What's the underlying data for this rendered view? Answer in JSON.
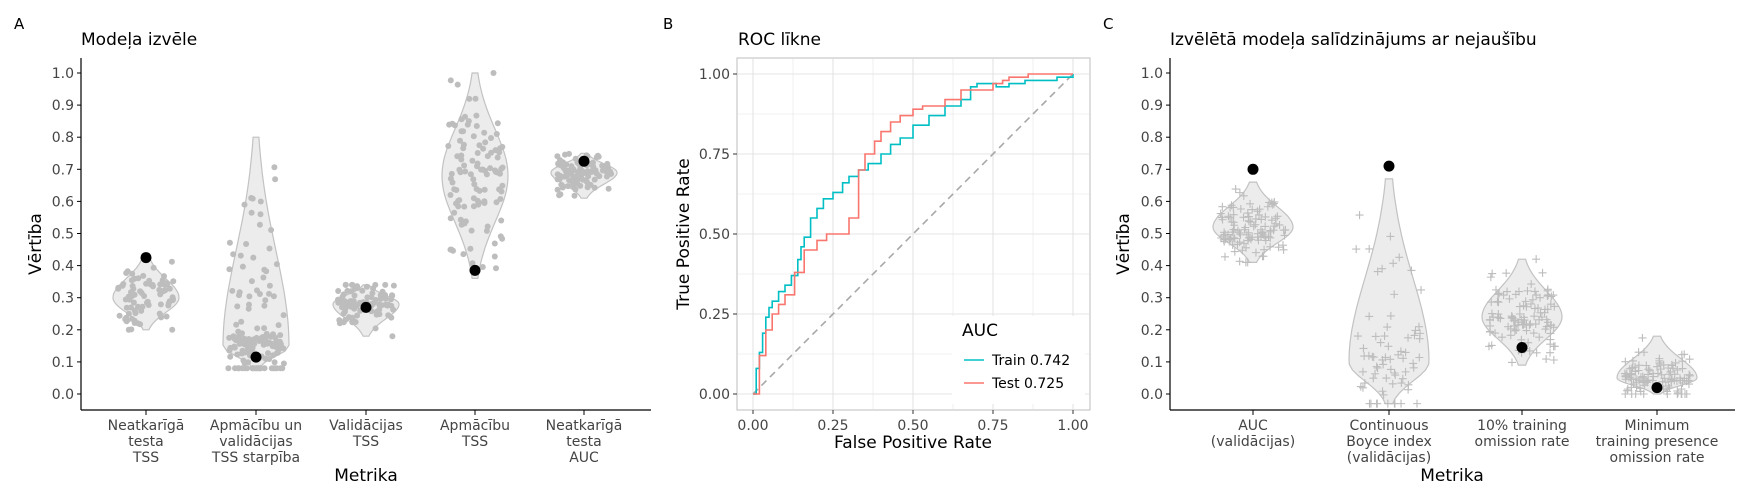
{
  "panel_labels": [
    "A",
    "B",
    "C"
  ],
  "colors": {
    "violin_fill": "#ececec",
    "violin_stroke": "#c2c2c2",
    "points": "#bdbdbd",
    "selected": "#000000",
    "train": "#00bfc4",
    "test": "#f8766d",
    "diagonal": "#a8a8a8",
    "grid": "#e4e4e4"
  },
  "chart_data": [
    {
      "id": "A",
      "type": "violin",
      "title": "Modeļa izvēle",
      "xlabel": "Metrika",
      "ylabel": "Vērtība",
      "ylim": [
        0,
        1
      ],
      "yticks": [
        "0.0",
        "0.1",
        "0.2",
        "0.3",
        "0.4",
        "0.5",
        "0.6",
        "0.7",
        "0.8",
        "0.9",
        "1.0"
      ],
      "point_shape": "circle",
      "categories": [
        {
          "label": [
            "Neatkarīgā",
            "testa",
            "TSS"
          ],
          "selected": 0.425,
          "min": 0.2,
          "max": 0.43,
          "center": 0.3,
          "n": 80
        },
        {
          "label": [
            "Apmācību un",
            "validācijas",
            "TSS starpība"
          ],
          "selected": 0.115,
          "min": 0.08,
          "max": 0.8,
          "center": 0.15,
          "n": 150
        },
        {
          "label": [
            "Validācijas",
            "TSS"
          ],
          "selected": 0.27,
          "min": 0.18,
          "max": 0.34,
          "center": 0.28,
          "n": 100
        },
        {
          "label": [
            "Apmācību",
            "TSS"
          ],
          "selected": 0.385,
          "min": 0.36,
          "max": 1.0,
          "center": 0.68,
          "n": 110
        },
        {
          "label": [
            "Neatkarīgā",
            "testa",
            "AUC"
          ],
          "selected": 0.725,
          "min": 0.61,
          "max": 0.75,
          "center": 0.69,
          "n": 100
        }
      ]
    },
    {
      "id": "B",
      "type": "line",
      "title": "ROC līkne",
      "xlabel": "False Positive Rate",
      "ylabel": "True Positive Rate",
      "xlim": [
        0,
        1
      ],
      "ylim": [
        0,
        1
      ],
      "xticks": [
        "0.00",
        "0.25",
        "0.50",
        "0.75",
        "1.00"
      ],
      "yticks": [
        "0.00",
        "0.25",
        "0.50",
        "0.75",
        "1.00"
      ],
      "legend_title": "AUC",
      "legend_position": "bottom-right",
      "series": [
        {
          "name": "Train 0.742",
          "x": [
            0,
            0.01,
            0.02,
            0.03,
            0.04,
            0.05,
            0.06,
            0.08,
            0.1,
            0.12,
            0.14,
            0.15,
            0.16,
            0.18,
            0.2,
            0.22,
            0.25,
            0.28,
            0.3,
            0.33,
            0.36,
            0.4,
            0.43,
            0.46,
            0.5,
            0.55,
            0.6,
            0.65,
            0.68,
            0.7,
            0.73,
            0.76,
            0.8,
            0.85,
            0.9,
            0.95,
            1.0
          ],
          "y": [
            0,
            0.08,
            0.13,
            0.19,
            0.24,
            0.27,
            0.29,
            0.32,
            0.34,
            0.37,
            0.42,
            0.46,
            0.49,
            0.55,
            0.58,
            0.61,
            0.63,
            0.66,
            0.68,
            0.7,
            0.72,
            0.75,
            0.78,
            0.8,
            0.84,
            0.87,
            0.9,
            0.92,
            0.96,
            0.97,
            0.97,
            0.96,
            0.97,
            0.98,
            0.98,
            0.99,
            1.0
          ]
        },
        {
          "name": "Test 0.725",
          "x": [
            0,
            0.02,
            0.04,
            0.06,
            0.08,
            0.1,
            0.13,
            0.16,
            0.2,
            0.23,
            0.26,
            0.3,
            0.33,
            0.35,
            0.38,
            0.4,
            0.43,
            0.46,
            0.5,
            0.53,
            0.56,
            0.6,
            0.65,
            0.7,
            0.75,
            0.78,
            0.8,
            0.86,
            0.9,
            0.95,
            1.0
          ],
          "y": [
            0,
            0.12,
            0.2,
            0.25,
            0.28,
            0.31,
            0.38,
            0.45,
            0.48,
            0.5,
            0.5,
            0.55,
            0.7,
            0.75,
            0.79,
            0.82,
            0.85,
            0.87,
            0.89,
            0.9,
            0.9,
            0.92,
            0.95,
            0.95,
            0.97,
            0.98,
            0.99,
            1.0,
            1.0,
            1.0,
            1.0
          ]
        }
      ]
    },
    {
      "id": "C",
      "type": "violin",
      "title": "Izvēlētā modeļa salīdzinājums ar nejaušību",
      "xlabel": "Metrika",
      "ylabel": "Vērtība",
      "ylim": [
        0,
        1
      ],
      "yticks": [
        "0.0",
        "0.1",
        "0.2",
        "0.3",
        "0.4",
        "0.5",
        "0.6",
        "0.7",
        "0.8",
        "0.9",
        "1.0"
      ],
      "point_shape": "cross",
      "categories": [
        {
          "label": [
            "AUC",
            "(validācijas)"
          ],
          "selected": 0.7,
          "min": 0.41,
          "max": 0.66,
          "center": 0.52,
          "n": 110
        },
        {
          "label": [
            "Continuous",
            "Boyce index",
            "(validācijas)"
          ],
          "selected": 0.71,
          "min": -0.03,
          "max": 0.67,
          "center": 0.1,
          "n": 70
        },
        {
          "label": [
            "10% training",
            "omission rate"
          ],
          "selected": 0.145,
          "min": 0.09,
          "max": 0.42,
          "center": 0.24,
          "n": 110
        },
        {
          "label": [
            "Minimum",
            "training presence",
            "omission rate"
          ],
          "selected": 0.02,
          "min": 0.0,
          "max": 0.18,
          "center": 0.05,
          "n": 110
        }
      ]
    }
  ]
}
